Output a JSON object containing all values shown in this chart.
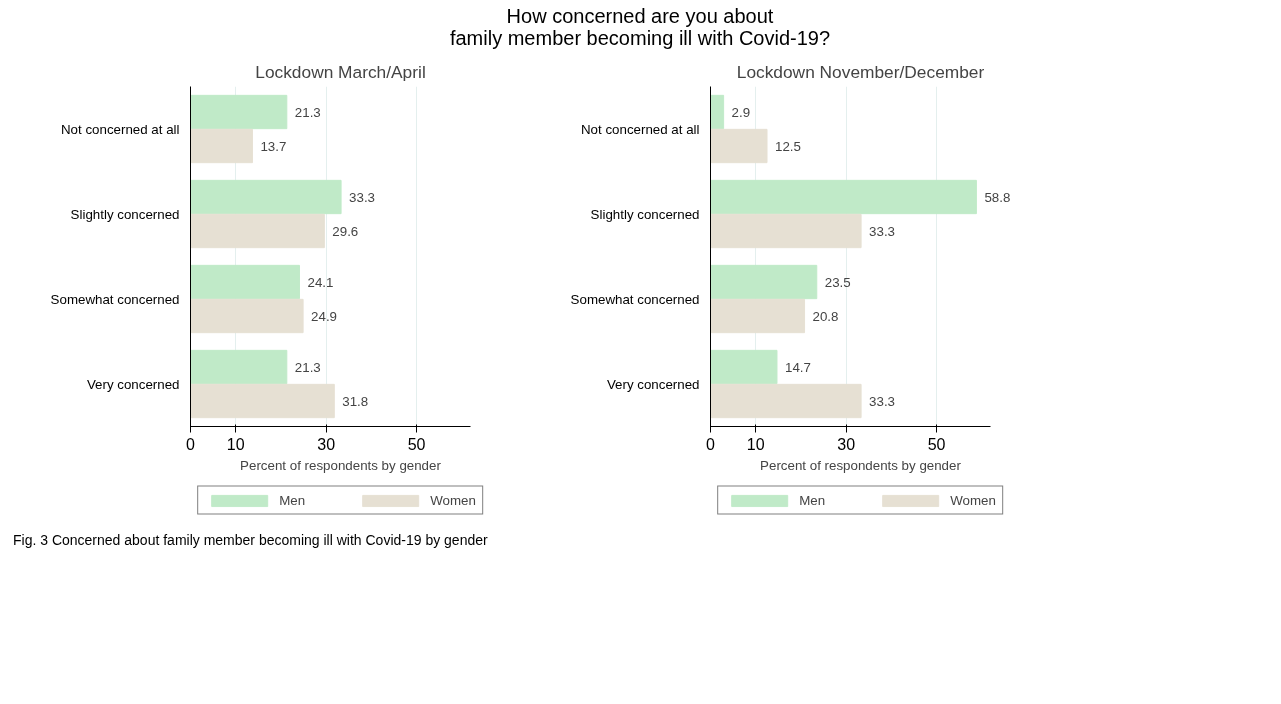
{
  "chart_data": [
    {
      "type": "bar",
      "orientation": "horizontal",
      "title": "How concerned are you about\nfamily member becoming ill with Covid-19?",
      "subtitle": "Lockdown March/April",
      "xlabel": "Percent of respondents by gender",
      "categories": [
        "Not concerned at all",
        "Slightly concerned",
        "Somewhat concerned",
        "Very concerned"
      ],
      "series": [
        {
          "name": "Men",
          "color": "#c0eac8",
          "values": [
            21.3,
            33.3,
            24.1,
            21.3
          ]
        },
        {
          "name": "Women",
          "color": "#e6e0d3",
          "values": [
            13.7,
            29.6,
            24.9,
            31.8
          ]
        }
      ],
      "xlim": [
        0,
        62
      ],
      "xticks": [
        0,
        10,
        30,
        50
      ],
      "grid": "x",
      "legend": "bottom",
      "data_labels": true,
      "annotations": [
        "Fig. 3 Concerned about family member becoming ill with Covid-19 by gender"
      ]
    },
    {
      "type": "bar",
      "orientation": "horizontal",
      "subtitle": "Lockdown November/December",
      "xlabel": "Percent of respondents by gender",
      "categories": [
        "Not concerned at all",
        "Slightly concerned",
        "Somewhat concerned",
        "Very concerned"
      ],
      "series": [
        {
          "name": "Men",
          "color": "#c0eac8",
          "values": [
            2.9,
            58.8,
            23.5,
            14.7
          ]
        },
        {
          "name": "Women",
          "color": "#e6e0d3",
          "values": [
            12.5,
            33.3,
            20.8,
            33.3
          ]
        }
      ],
      "xlim": [
        0,
        62
      ],
      "xticks": [
        0,
        10,
        30,
        50
      ],
      "grid": "x",
      "legend": "bottom",
      "data_labels": true
    }
  ]
}
